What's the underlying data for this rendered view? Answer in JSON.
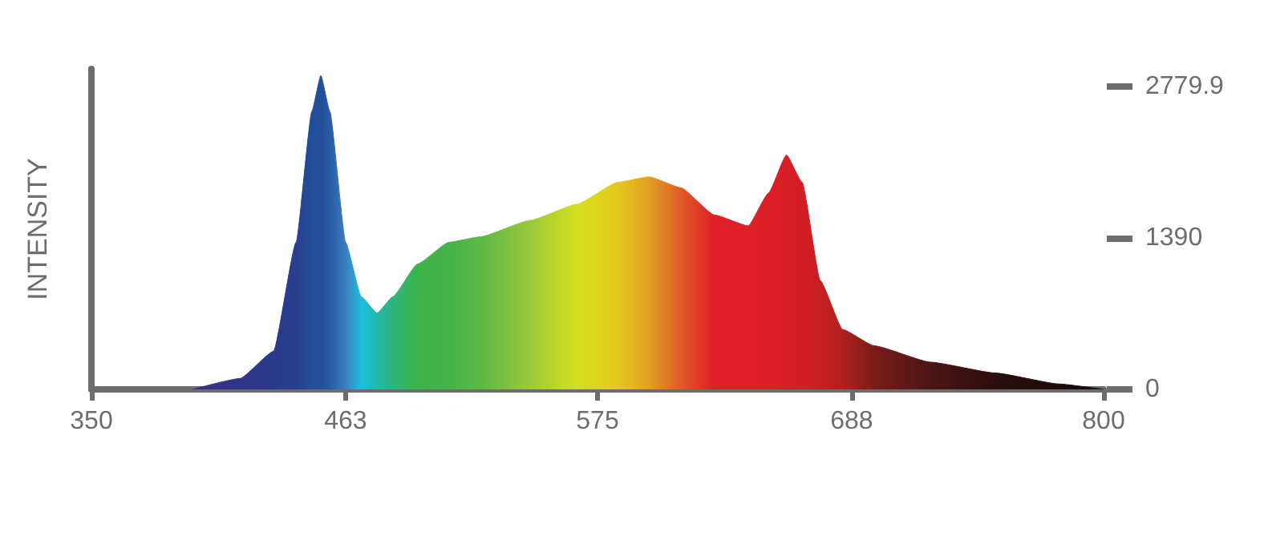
{
  "chart_data": {
    "type": "area",
    "ylabel": "INTENSITY",
    "xlim": [
      350,
      800
    ],
    "xticks": [
      350,
      463,
      575,
      688,
      800
    ],
    "ylim": [
      0,
      2940
    ],
    "yticks": [
      0,
      1390,
      2779.9
    ],
    "grid": false,
    "marker": "none",
    "series": [
      {
        "x": [
          395,
          416,
          431,
          441,
          448,
          452,
          456,
          463,
          470,
          477,
          484,
          495,
          509,
          523,
          545,
          566,
          584,
          598,
          612,
          627,
          642,
          651,
          659,
          666,
          674,
          684,
          698,
          723,
          752,
          780,
          800
        ],
        "values": [
          0,
          100,
          350,
          1350,
          2550,
          2880,
          2550,
          1350,
          850,
          700,
          850,
          1150,
          1350,
          1400,
          1550,
          1700,
          1900,
          1950,
          1850,
          1600,
          1500,
          1800,
          2150,
          1900,
          1000,
          550,
          400,
          250,
          150,
          50,
          0
        ],
        "colors": [
          "#3a2f8a",
          "#2f3585",
          "#2b3a8c",
          "#2a3f8e",
          "#234e9a",
          "#234e9a",
          "#2a5aa6",
          "#3b7ec0",
          "#1fbfdc",
          "#20b8a8",
          "#2fb57a",
          "#3cb44a",
          "#45b449",
          "#5cb845",
          "#9bc93c",
          "#d4e01e",
          "#e4c81c",
          "#e2a024",
          "#e05a28",
          "#e01f26",
          "#df1f26",
          "#dc1f25",
          "#d81e24",
          "#d41e24",
          "#c81e22",
          "#b02020",
          "#7a1c1a",
          "#4a1614",
          "#2a0e0e",
          "#1e0a0a",
          "#1a0a0a"
        ]
      }
    ]
  }
}
